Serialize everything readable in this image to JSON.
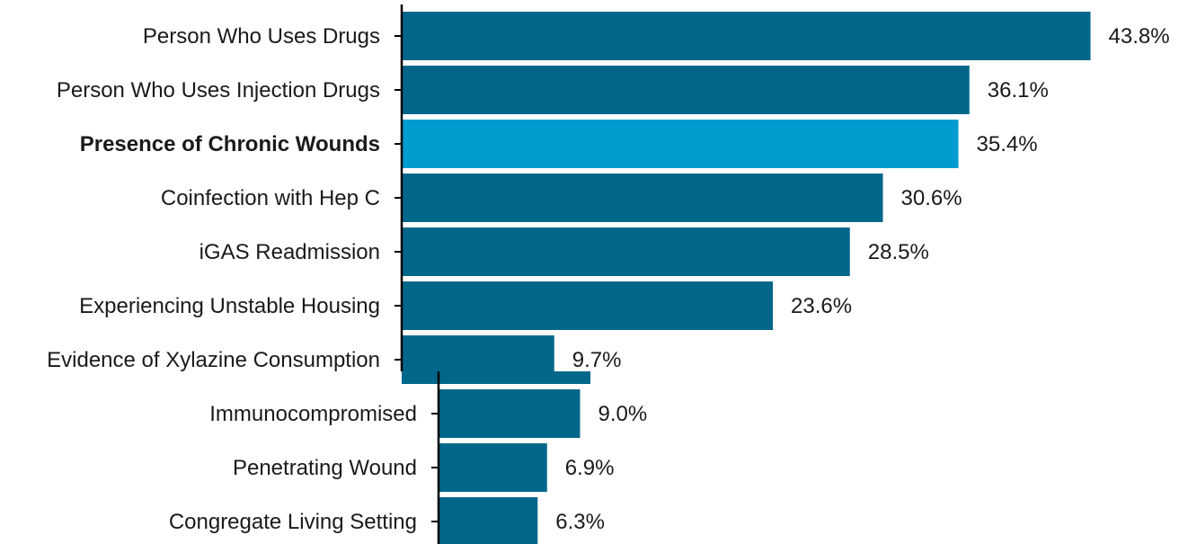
{
  "chart_data": {
    "type": "bar",
    "orientation": "horizontal",
    "categories": [
      "Person Who Uses Drugs",
      "Person Who Uses Injection Drugs",
      "Presence of Chronic Wounds",
      "Coinfection with Hep C",
      "iGAS Readmission",
      "Experiencing Unstable Housing",
      "Evidence of Xylazine Consumption",
      "Immunocompromised",
      "Penetrating Wound",
      "Congregate Living Setting"
    ],
    "values": [
      43.8,
      36.1,
      35.4,
      30.6,
      28.5,
      23.6,
      9.7,
      9.0,
      6.9,
      6.3
    ],
    "value_labels": [
      "43.8%",
      "36.1%",
      "35.4%",
      "30.6%",
      "28.5%",
      "23.6%",
      "9.7%",
      "9.0%",
      "6.9%",
      "6.3%"
    ],
    "highlighted_category": "Presence of Chronic Wounds",
    "title": "",
    "xlabel": "",
    "ylabel": "",
    "xlim": [
      0,
      45
    ],
    "grid": false,
    "legend": "none",
    "colors": {
      "bar": "#00678a",
      "highlight": "#009bcf"
    }
  }
}
